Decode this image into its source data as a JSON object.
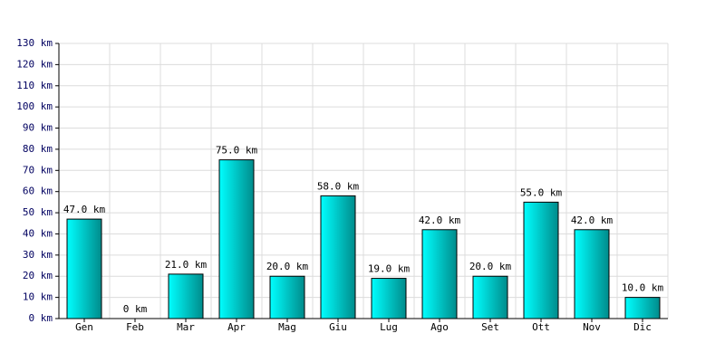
{
  "chart_data": {
    "type": "bar",
    "categories": [
      "Gen",
      "Feb",
      "Mar",
      "Apr",
      "Mag",
      "Giu",
      "Lug",
      "Ago",
      "Set",
      "Ott",
      "Nov",
      "Dic"
    ],
    "values": [
      47,
      0,
      21,
      75,
      20,
      58,
      19,
      42,
      20,
      55,
      42,
      10
    ],
    "value_labels": [
      "47.0 km",
      "0 km",
      "21.0 km",
      "75.0 km",
      "20.0 km",
      "58.0 km",
      "19.0 km",
      "42.0 km",
      "20.0 km",
      "55.0 km",
      "42.0 km",
      "10.0 km"
    ],
    "color": "#00cccc",
    "ylim": [
      0,
      130
    ],
    "yticks": [
      {
        "value": 0,
        "label": "0 km"
      },
      {
        "value": 10,
        "label": "10 km"
      },
      {
        "value": 20,
        "label": "20 km"
      },
      {
        "value": 30,
        "label": "30 km"
      },
      {
        "value": 40,
        "label": "40 km"
      },
      {
        "value": 50,
        "label": "50 km"
      },
      {
        "value": 60,
        "label": "60 km"
      },
      {
        "value": 70,
        "label": "70 km"
      },
      {
        "value": 80,
        "label": "80 km"
      },
      {
        "value": 90,
        "label": "90 km"
      },
      {
        "value": 100,
        "label": "100 km"
      },
      {
        "value": 110,
        "label": "110 km"
      },
      {
        "value": 120,
        "label": "120 km"
      },
      {
        "value": 130,
        "label": "130 km"
      }
    ],
    "grid": true
  }
}
